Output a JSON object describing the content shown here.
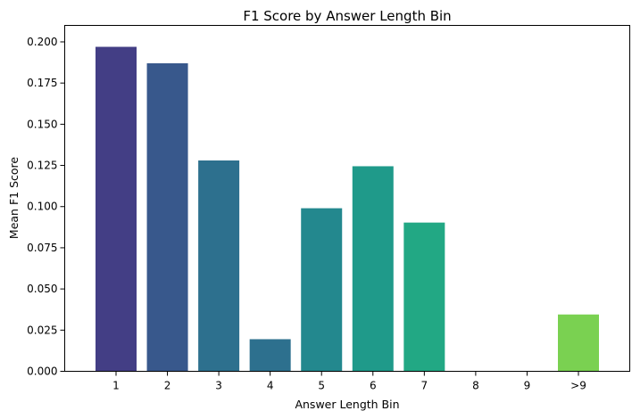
{
  "chart_data": {
    "type": "bar",
    "title": "F1 Score by Answer Length Bin",
    "xlabel": "Answer Length Bin",
    "ylabel": "Mean F1 Score",
    "categories": [
      "1",
      "2",
      "3",
      "4",
      "5",
      "6",
      "7",
      "8",
      "9",
      ">9"
    ],
    "values": [
      0.197,
      0.187,
      0.128,
      0.0195,
      0.099,
      0.1245,
      0.0903,
      0.0,
      0.0,
      0.0345
    ],
    "colors": [
      "#433e85",
      "#38588c",
      "#2d708e",
      "#2d708e",
      "#23888e",
      "#1f9a8a",
      "#22a884",
      "#2ab07f",
      "#52c569",
      "#7ad151"
    ],
    "ylim": [
      0,
      0.21
    ],
    "yticks": [
      "0.000",
      "0.025",
      "0.050",
      "0.075",
      "0.100",
      "0.125",
      "0.150",
      "0.175",
      "0.200"
    ],
    "grid": false,
    "legend": "none"
  }
}
